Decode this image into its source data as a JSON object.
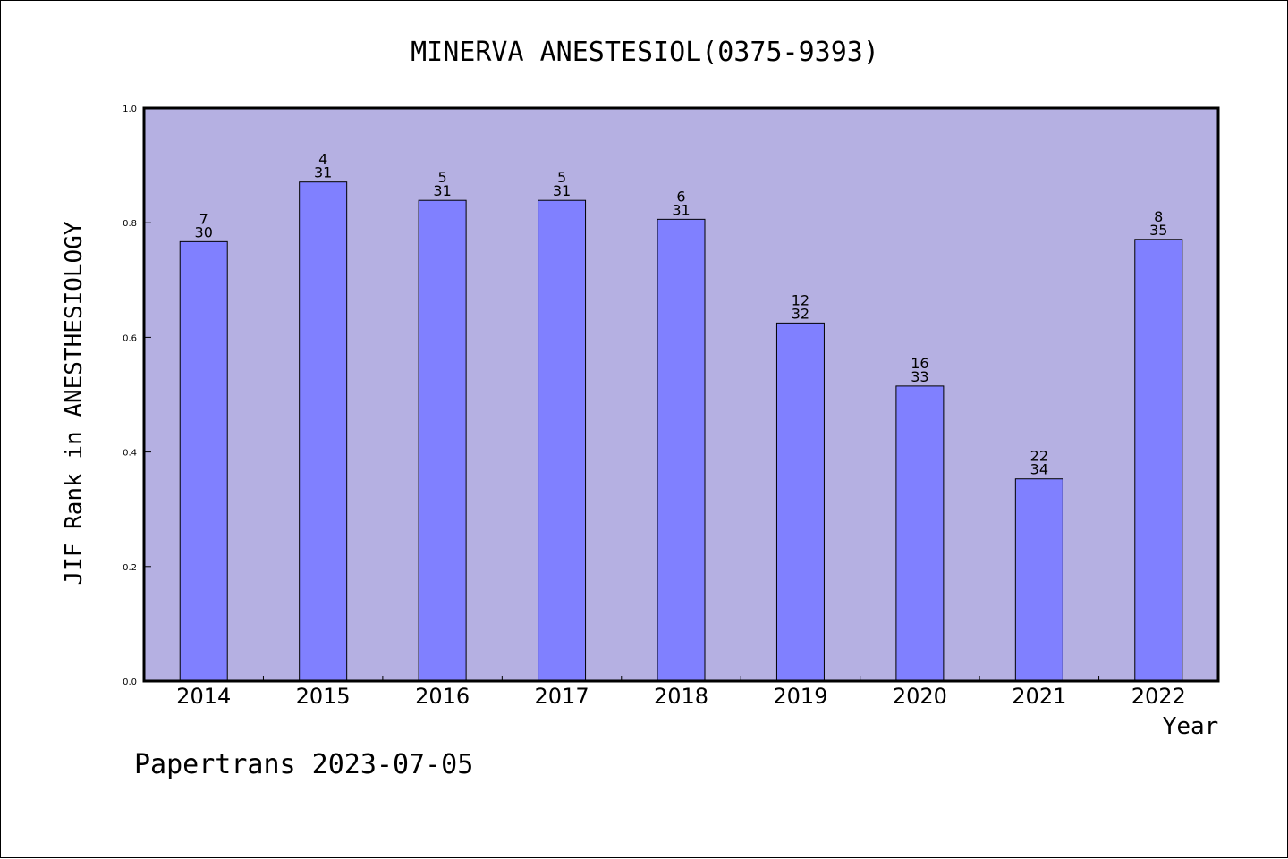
{
  "chart_data": {
    "type": "bar",
    "title": "MINERVA ANESTESIOL(0375-9393)",
    "xlabel": "Year",
    "ylabel": "JIF Rank in ANESTHESIOLOGY",
    "categories": [
      "2014",
      "2015",
      "2016",
      "2017",
      "2018",
      "2019",
      "2020",
      "2021",
      "2022"
    ],
    "series": [
      {
        "values": [
          0.767,
          0.871,
          0.839,
          0.839,
          0.806,
          0.625,
          0.515,
          0.353,
          0.771
        ],
        "rank": [
          "7",
          "4",
          "5",
          "5",
          "6",
          "12",
          "16",
          "22",
          "8"
        ],
        "total": [
          "30",
          "31",
          "31",
          "31",
          "31",
          "32",
          "33",
          "34",
          "35"
        ]
      }
    ],
    "ylim": [
      0,
      1.0
    ],
    "yticks": [
      "0.0",
      "0.2",
      "0.4",
      "0.6",
      "0.8",
      "1.0"
    ],
    "grid": false,
    "colors": {
      "plot_background": "#b5b0e2",
      "bar_fill": "#8080ff",
      "bar_edge": "#000000"
    }
  },
  "footer": "Papertrans 2023-07-05"
}
